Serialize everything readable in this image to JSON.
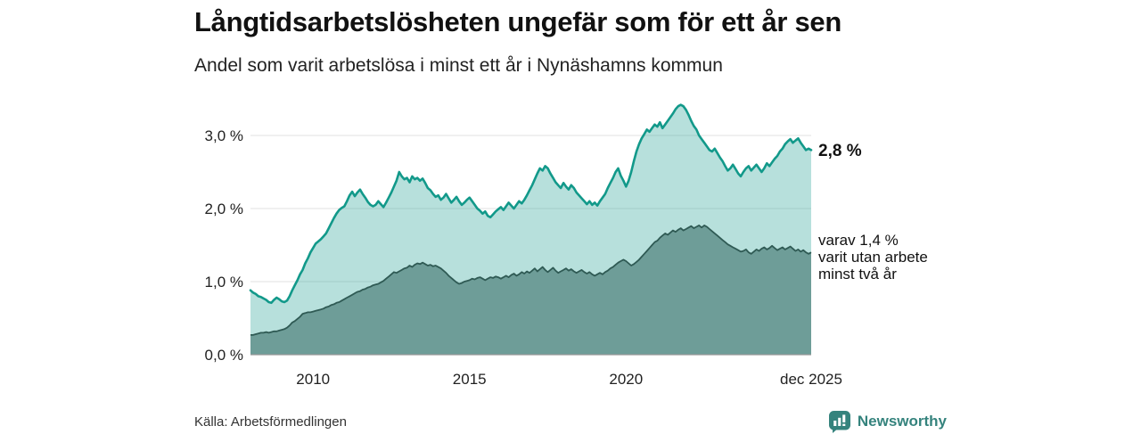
{
  "title": "Långtidsarbetslösheten ungefär som för ett år sen",
  "subtitle": "Andel som varit arbetslösa i minst ett år i Nynäshamns kommun",
  "annotations": {
    "latest_total": "2,8 %",
    "breakdown_lines": [
      "varav 1,4 %",
      "varit utan arbete",
      "minst två år"
    ]
  },
  "footer": {
    "source": "Källa: Arbetsförmedlingen",
    "brand": "Newsworthy"
  },
  "colors": {
    "line_total": "#12998a",
    "fill_total": "rgba(18,153,138,0.30)",
    "line_two_years": "#2f5a54",
    "fill_two_years": "#6e9d98",
    "grid": "#e2e2e2",
    "axis_baseline": "#999999",
    "brand_teal": "#35837d"
  },
  "chart_data": {
    "type": "area",
    "title": "Långtidsarbetslösheten ungefär som för ett år sen",
    "subtitle": "Andel som varit arbetslösa i minst ett år i Nynäshamns kommun",
    "unit": "%",
    "x_start": 2008.0,
    "x_end": 2025.9167,
    "x_ticks": [
      {
        "value": 2010,
        "label": "2010"
      },
      {
        "value": 2015,
        "label": "2015"
      },
      {
        "value": 2020,
        "label": "2020"
      },
      {
        "value": 2025.9167,
        "label": "dec 2025"
      }
    ],
    "y_ticks": [
      {
        "value": 0,
        "label": "0,0 %"
      },
      {
        "value": 1,
        "label": "1,0 %"
      },
      {
        "value": 2,
        "label": "2,0 %"
      },
      {
        "value": 3,
        "label": "3,0 %"
      }
    ],
    "ylim": [
      0,
      3.6
    ],
    "grid": true,
    "legend_position": "right-annotations",
    "series": [
      {
        "name": "Andel som varit arbetslösa i minst ett år",
        "latest_value": 2.8,
        "values": [
          0.88,
          0.85,
          0.83,
          0.8,
          0.79,
          0.77,
          0.75,
          0.72,
          0.71,
          0.75,
          0.78,
          0.76,
          0.73,
          0.72,
          0.74,
          0.8,
          0.88,
          0.95,
          1.02,
          1.1,
          1.16,
          1.25,
          1.32,
          1.4,
          1.46,
          1.52,
          1.55,
          1.58,
          1.62,
          1.66,
          1.73,
          1.8,
          1.87,
          1.93,
          1.98,
          2.01,
          2.03,
          2.1,
          2.18,
          2.23,
          2.17,
          2.22,
          2.26,
          2.2,
          2.15,
          2.09,
          2.05,
          2.03,
          2.05,
          2.1,
          2.06,
          2.02,
          2.08,
          2.15,
          2.22,
          2.3,
          2.38,
          2.5,
          2.44,
          2.4,
          2.42,
          2.36,
          2.44,
          2.4,
          2.42,
          2.38,
          2.41,
          2.35,
          2.28,
          2.25,
          2.2,
          2.16,
          2.18,
          2.12,
          2.15,
          2.2,
          2.14,
          2.08,
          2.12,
          2.16,
          2.1,
          2.05,
          2.08,
          2.12,
          2.15,
          2.1,
          2.05,
          2.0,
          1.97,
          1.93,
          1.96,
          1.9,
          1.88,
          1.92,
          1.96,
          1.99,
          2.02,
          1.98,
          2.03,
          2.08,
          2.04,
          2.0,
          2.05,
          2.1,
          2.07,
          2.12,
          2.18,
          2.25,
          2.32,
          2.4,
          2.48,
          2.55,
          2.52,
          2.58,
          2.55,
          2.48,
          2.42,
          2.36,
          2.32,
          2.28,
          2.35,
          2.3,
          2.26,
          2.32,
          2.28,
          2.22,
          2.18,
          2.14,
          2.1,
          2.06,
          2.1,
          2.05,
          2.08,
          2.04,
          2.1,
          2.15,
          2.2,
          2.28,
          2.35,
          2.42,
          2.5,
          2.55,
          2.45,
          2.38,
          2.3,
          2.38,
          2.5,
          2.65,
          2.78,
          2.88,
          2.96,
          3.02,
          3.08,
          3.05,
          3.1,
          3.15,
          3.12,
          3.18,
          3.1,
          3.15,
          3.2,
          3.25,
          3.3,
          3.36,
          3.4,
          3.42,
          3.4,
          3.35,
          3.28,
          3.2,
          3.13,
          3.08,
          3.0,
          2.95,
          2.9,
          2.85,
          2.8,
          2.78,
          2.82,
          2.76,
          2.7,
          2.65,
          2.58,
          2.52,
          2.55,
          2.6,
          2.54,
          2.48,
          2.44,
          2.5,
          2.55,
          2.58,
          2.52,
          2.56,
          2.6,
          2.55,
          2.5,
          2.55,
          2.62,
          2.58,
          2.63,
          2.68,
          2.72,
          2.78,
          2.82,
          2.88,
          2.92,
          2.95,
          2.9,
          2.93,
          2.96,
          2.9,
          2.85,
          2.8,
          2.82,
          2.8
        ]
      },
      {
        "name": "varav utan arbete minst två år",
        "latest_value": 1.4,
        "values": [
          0.27,
          0.27,
          0.28,
          0.29,
          0.3,
          0.3,
          0.31,
          0.3,
          0.31,
          0.32,
          0.32,
          0.33,
          0.34,
          0.35,
          0.37,
          0.4,
          0.44,
          0.46,
          0.49,
          0.52,
          0.56,
          0.57,
          0.58,
          0.58,
          0.59,
          0.6,
          0.61,
          0.62,
          0.63,
          0.65,
          0.66,
          0.68,
          0.69,
          0.71,
          0.72,
          0.74,
          0.76,
          0.78,
          0.8,
          0.82,
          0.84,
          0.86,
          0.87,
          0.89,
          0.9,
          0.92,
          0.93,
          0.95,
          0.96,
          0.97,
          0.99,
          1.01,
          1.04,
          1.07,
          1.1,
          1.13,
          1.12,
          1.14,
          1.16,
          1.18,
          1.19,
          1.22,
          1.2,
          1.23,
          1.25,
          1.24,
          1.26,
          1.24,
          1.22,
          1.23,
          1.21,
          1.22,
          1.2,
          1.18,
          1.15,
          1.12,
          1.08,
          1.05,
          1.02,
          0.99,
          0.97,
          0.98,
          1.0,
          1.01,
          1.02,
          1.04,
          1.03,
          1.05,
          1.06,
          1.04,
          1.02,
          1.04,
          1.06,
          1.05,
          1.07,
          1.06,
          1.04,
          1.06,
          1.08,
          1.06,
          1.09,
          1.11,
          1.08,
          1.1,
          1.13,
          1.11,
          1.14,
          1.12,
          1.15,
          1.18,
          1.14,
          1.17,
          1.2,
          1.16,
          1.13,
          1.16,
          1.19,
          1.15,
          1.12,
          1.14,
          1.16,
          1.18,
          1.15,
          1.17,
          1.14,
          1.12,
          1.14,
          1.16,
          1.13,
          1.11,
          1.13,
          1.1,
          1.08,
          1.1,
          1.12,
          1.1,
          1.13,
          1.15,
          1.18,
          1.2,
          1.23,
          1.26,
          1.28,
          1.3,
          1.28,
          1.25,
          1.22,
          1.24,
          1.27,
          1.3,
          1.34,
          1.38,
          1.42,
          1.46,
          1.5,
          1.54,
          1.56,
          1.6,
          1.63,
          1.66,
          1.64,
          1.67,
          1.7,
          1.68,
          1.71,
          1.73,
          1.7,
          1.72,
          1.74,
          1.76,
          1.73,
          1.75,
          1.77,
          1.74,
          1.77,
          1.75,
          1.72,
          1.69,
          1.66,
          1.63,
          1.6,
          1.57,
          1.54,
          1.51,
          1.49,
          1.47,
          1.45,
          1.43,
          1.41,
          1.42,
          1.44,
          1.4,
          1.38,
          1.41,
          1.44,
          1.42,
          1.45,
          1.47,
          1.44,
          1.46,
          1.49,
          1.46,
          1.43,
          1.45,
          1.47,
          1.44,
          1.46,
          1.48,
          1.45,
          1.42,
          1.44,
          1.41,
          1.43,
          1.4,
          1.38,
          1.4
        ]
      }
    ]
  }
}
